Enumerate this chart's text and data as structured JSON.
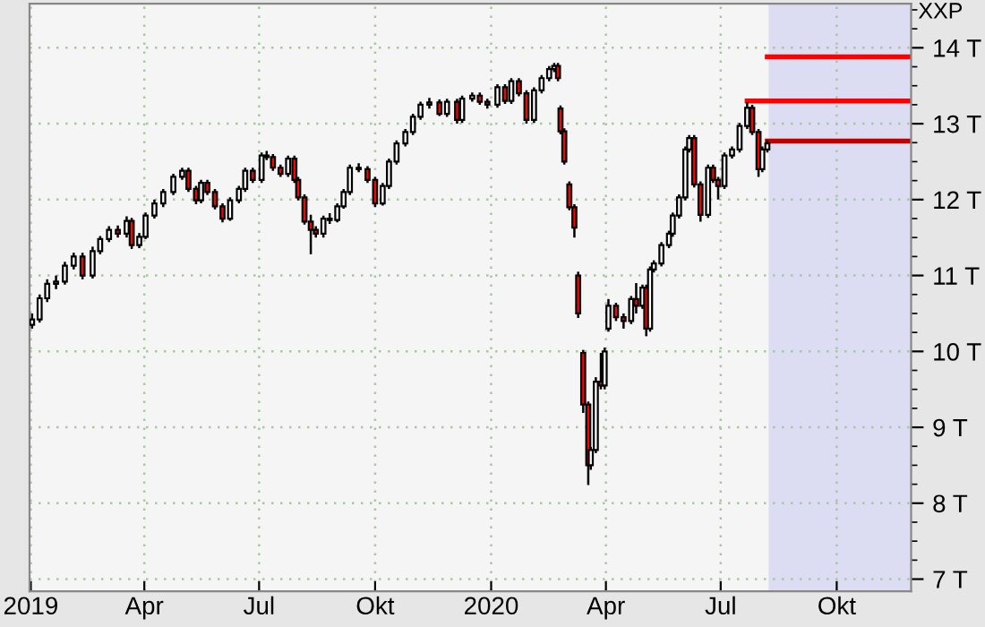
{
  "chart_data": {
    "type": "candlestick",
    "title": "XXP",
    "x": [
      "2019-01-02",
      "2019-01-08",
      "2019-01-14",
      "2019-01-21",
      "2019-01-28",
      "2019-02-04",
      "2019-02-11",
      "2019-02-19",
      "2019-02-25",
      "2019-03-04",
      "2019-03-11",
      "2019-03-18",
      "2019-03-22",
      "2019-03-28",
      "2019-04-02",
      "2019-04-09",
      "2019-04-16",
      "2019-04-24",
      "2019-05-01",
      "2019-05-06",
      "2019-05-12",
      "2019-05-16",
      "2019-05-21",
      "2019-05-27",
      "2019-06-02",
      "2019-06-08",
      "2019-06-15",
      "2019-06-20",
      "2019-06-26",
      "2019-07-03",
      "2019-07-07",
      "2019-07-12",
      "2019-07-18",
      "2019-07-24",
      "2019-07-29",
      "2019-08-01",
      "2019-08-06",
      "2019-08-11",
      "2019-08-15",
      "2019-08-21",
      "2019-08-26",
      "2019-09-01",
      "2019-09-06",
      "2019-09-11",
      "2019-09-18",
      "2019-09-25",
      "2019-10-01",
      "2019-10-07",
      "2019-10-12",
      "2019-10-18",
      "2019-10-25",
      "2019-10-31",
      "2019-11-06",
      "2019-11-13",
      "2019-11-21",
      "2019-11-27",
      "2019-12-05",
      "2019-12-09",
      "2019-12-17",
      "2019-12-23",
      "2019-12-29",
      "2020-01-06",
      "2020-01-12",
      "2020-01-17",
      "2020-01-23",
      "2020-01-29",
      "2020-02-04",
      "2020-02-10",
      "2020-02-16",
      "2020-02-20",
      "2020-02-23",
      "2020-02-25",
      "2020-02-28",
      "2020-03-03",
      "2020-03-07",
      "2020-03-10",
      "2020-03-14",
      "2020-03-18",
      "2020-03-20",
      "2020-03-24",
      "2020-03-28",
      "2020-03-31",
      "2020-04-03",
      "2020-04-09",
      "2020-04-15",
      "2020-04-21",
      "2020-04-25",
      "2020-04-30",
      "2020-05-03",
      "2020-05-06",
      "2020-05-09",
      "2020-05-15",
      "2020-05-21",
      "2020-05-24",
      "2020-05-29",
      "2020-06-03",
      "2020-06-06",
      "2020-06-10",
      "2020-06-15",
      "2020-06-21",
      "2020-06-25",
      "2020-06-29",
      "2020-07-04",
      "2020-07-10",
      "2020-07-16",
      "2020-07-22",
      "2020-07-26",
      "2020-07-31",
      "2020-08-03",
      "2020-08-07"
    ],
    "ohlc": [
      [
        10.35,
        10.5,
        10.3,
        10.42
      ],
      [
        10.42,
        10.75,
        10.38,
        10.7
      ],
      [
        10.7,
        10.95,
        10.65,
        10.89
      ],
      [
        10.89,
        11.0,
        10.82,
        10.92
      ],
      [
        10.92,
        11.18,
        10.88,
        11.13
      ],
      [
        11.13,
        11.3,
        11.08,
        11.25
      ],
      [
        11.25,
        11.3,
        10.95,
        11.0
      ],
      [
        11.0,
        11.38,
        10.96,
        11.32
      ],
      [
        11.32,
        11.52,
        11.28,
        11.48
      ],
      [
        11.48,
        11.65,
        11.44,
        11.6
      ],
      [
        11.6,
        11.66,
        11.5,
        11.55
      ],
      [
        11.55,
        11.78,
        11.5,
        11.72
      ],
      [
        11.72,
        11.76,
        11.35,
        11.4
      ],
      [
        11.4,
        11.56,
        11.36,
        11.51
      ],
      [
        11.51,
        11.83,
        11.48,
        11.79
      ],
      [
        11.79,
        12.0,
        11.75,
        11.95
      ],
      [
        11.95,
        12.14,
        11.9,
        12.1
      ],
      [
        12.1,
        12.34,
        12.06,
        12.3
      ],
      [
        12.3,
        12.42,
        12.26,
        12.38
      ],
      [
        12.38,
        12.42,
        12.1,
        12.14
      ],
      [
        12.14,
        12.18,
        11.94,
        11.99
      ],
      [
        11.99,
        12.26,
        11.95,
        12.22
      ],
      [
        12.22,
        12.26,
        12.06,
        12.1
      ],
      [
        12.1,
        12.14,
        11.87,
        11.91
      ],
      [
        11.91,
        11.95,
        11.7,
        11.75
      ],
      [
        11.75,
        12.03,
        11.72,
        11.99
      ],
      [
        11.99,
        12.18,
        11.95,
        12.14
      ],
      [
        12.14,
        12.42,
        12.1,
        12.38
      ],
      [
        12.38,
        12.42,
        12.22,
        12.26
      ],
      [
        12.26,
        12.62,
        12.22,
        12.58
      ],
      [
        12.58,
        12.64,
        12.52,
        12.56
      ],
      [
        12.56,
        12.6,
        12.38,
        12.42
      ],
      [
        12.42,
        12.46,
        12.3,
        12.34
      ],
      [
        12.34,
        12.58,
        12.3,
        12.54
      ],
      [
        12.54,
        12.58,
        12.22,
        12.26
      ],
      [
        12.26,
        12.3,
        11.99,
        12.03
      ],
      [
        12.03,
        12.07,
        11.67,
        11.71
      ],
      [
        11.71,
        11.8,
        11.28,
        11.6
      ],
      [
        11.6,
        11.65,
        11.5,
        11.55
      ],
      [
        11.55,
        11.79,
        11.5,
        11.75
      ],
      [
        11.75,
        11.82,
        11.68,
        11.73
      ],
      [
        11.73,
        11.95,
        11.7,
        11.91
      ],
      [
        11.91,
        12.14,
        11.88,
        12.1
      ],
      [
        12.1,
        12.46,
        12.06,
        12.42
      ],
      [
        12.42,
        12.48,
        12.36,
        12.4
      ],
      [
        12.4,
        12.44,
        12.22,
        12.26
      ],
      [
        12.26,
        12.3,
        11.9,
        11.95
      ],
      [
        11.95,
        12.22,
        11.92,
        12.18
      ],
      [
        12.18,
        12.54,
        12.14,
        12.5
      ],
      [
        12.5,
        12.78,
        12.46,
        12.74
      ],
      [
        12.74,
        12.93,
        12.7,
        12.89
      ],
      [
        12.89,
        13.13,
        12.85,
        13.09
      ],
      [
        13.09,
        13.29,
        13.05,
        13.25
      ],
      [
        13.25,
        13.34,
        13.2,
        13.28
      ],
      [
        13.28,
        13.32,
        13.1,
        13.13
      ],
      [
        13.13,
        13.33,
        13.09,
        13.29
      ],
      [
        13.29,
        13.33,
        13.0,
        13.05
      ],
      [
        13.05,
        13.37,
        13.01,
        13.33
      ],
      [
        13.33,
        13.41,
        13.29,
        13.37
      ],
      [
        13.37,
        13.41,
        13.25,
        13.29
      ],
      [
        13.29,
        13.33,
        13.2,
        13.25
      ],
      [
        13.25,
        13.52,
        13.21,
        13.48
      ],
      [
        13.48,
        13.52,
        13.26,
        13.3
      ],
      [
        13.3,
        13.6,
        13.26,
        13.56
      ],
      [
        13.56,
        13.6,
        13.36,
        13.4
      ],
      [
        13.4,
        13.44,
        13.0,
        13.05
      ],
      [
        13.05,
        13.48,
        13.01,
        13.44
      ],
      [
        13.44,
        13.64,
        13.4,
        13.6
      ],
      [
        13.6,
        13.76,
        13.56,
        13.72
      ],
      [
        13.72,
        13.8,
        13.68,
        13.76
      ],
      [
        13.76,
        13.8,
        13.56,
        13.6
      ],
      [
        13.2,
        13.24,
        12.86,
        12.9
      ],
      [
        12.9,
        12.94,
        12.46,
        12.5
      ],
      [
        12.2,
        12.24,
        11.86,
        11.9
      ],
      [
        11.9,
        11.94,
        11.5,
        11.63
      ],
      [
        11.0,
        11.05,
        10.44,
        10.5
      ],
      [
        9.98,
        10.02,
        9.19,
        9.3
      ],
      [
        9.3,
        9.34,
        8.24,
        8.5
      ],
      [
        8.5,
        8.74,
        8.44,
        8.7
      ],
      [
        8.7,
        9.66,
        8.66,
        9.6
      ],
      [
        9.6,
        9.98,
        9.5,
        9.55
      ],
      [
        9.55,
        10.05,
        9.5,
        10.0
      ],
      [
        10.3,
        10.69,
        10.26,
        10.6
      ],
      [
        10.6,
        10.64,
        10.4,
        10.45
      ],
      [
        10.45,
        10.5,
        10.3,
        10.4
      ],
      [
        10.4,
        10.73,
        10.36,
        10.69
      ],
      [
        10.69,
        10.9,
        10.5,
        10.6
      ],
      [
        10.6,
        10.88,
        10.56,
        10.84
      ],
      [
        10.84,
        10.88,
        10.2,
        10.3
      ],
      [
        10.3,
        11.12,
        10.26,
        11.08
      ],
      [
        11.08,
        11.2,
        11.04,
        11.16
      ],
      [
        11.16,
        11.44,
        11.12,
        11.4
      ],
      [
        11.4,
        11.59,
        11.36,
        11.55
      ],
      [
        11.55,
        11.83,
        11.51,
        11.79
      ],
      [
        11.79,
        12.07,
        11.75,
        12.03
      ],
      [
        12.03,
        12.7,
        11.99,
        12.66
      ],
      [
        12.66,
        12.85,
        12.62,
        12.81
      ],
      [
        12.81,
        12.85,
        12.16,
        12.2
      ],
      [
        12.2,
        12.24,
        11.71,
        11.8
      ],
      [
        11.8,
        12.46,
        11.76,
        12.42
      ],
      [
        12.42,
        12.46,
        12.22,
        12.26
      ],
      [
        12.26,
        12.3,
        12.0,
        12.18
      ],
      [
        12.18,
        12.62,
        12.14,
        12.58
      ],
      [
        12.58,
        12.7,
        12.54,
        12.66
      ],
      [
        12.66,
        13.01,
        12.62,
        12.97
      ],
      [
        12.97,
        13.28,
        12.93,
        13.21
      ],
      [
        13.21,
        13.25,
        12.85,
        12.89
      ],
      [
        12.89,
        12.93,
        12.3,
        12.4
      ],
      [
        12.4,
        12.7,
        12.36,
        12.66
      ],
      [
        12.66,
        12.78,
        12.62,
        12.74
      ]
    ],
    "series": [
      {
        "type": "line",
        "color": "#ff0000",
        "x": [
          "2020-08-07",
          "2020-11-29"
        ],
        "values": [
          13.88,
          13.88
        ]
      },
      {
        "type": "line",
        "color": "#ff0000",
        "x": [
          "2020-07-22",
          "2020-11-29"
        ],
        "values": [
          13.3,
          13.3
        ]
      },
      {
        "type": "line",
        "color": "#c00000",
        "x": [
          "2020-08-07",
          "2020-11-29"
        ],
        "values": [
          12.77,
          12.77
        ]
      }
    ],
    "bands": [
      {
        "axis": "x",
        "from": "2020-08-08",
        "to": "2020-11-29",
        "color": "#dcdcf2"
      }
    ],
    "xlim": [
      "2018-12-31",
      "2020-11-29"
    ],
    "xticks": [
      {
        "value": "2019-01-01",
        "label": "2019"
      },
      {
        "value": "2019-04-01",
        "label": "Apr"
      },
      {
        "value": "2019-07-01",
        "label": "Jul"
      },
      {
        "value": "2019-10-01",
        "label": "Okt"
      },
      {
        "value": "2020-01-01",
        "label": "2020"
      },
      {
        "value": "2020-04-01",
        "label": "Apr"
      },
      {
        "value": "2020-07-01",
        "label": "Jul"
      },
      {
        "value": "2020-10-01",
        "label": "Okt"
      }
    ],
    "ylim": [
      6.84,
      14.58
    ],
    "yticks": [
      {
        "value": 7,
        "label": "7 T"
      },
      {
        "value": 8,
        "label": "8 T"
      },
      {
        "value": 9,
        "label": "9 T"
      },
      {
        "value": 10,
        "label": "10 T"
      },
      {
        "value": 11,
        "label": "11 T"
      },
      {
        "value": 12,
        "label": "12 T"
      },
      {
        "value": 13,
        "label": "13 T"
      },
      {
        "value": 14,
        "label": "14 T"
      }
    ],
    "grid": true
  }
}
